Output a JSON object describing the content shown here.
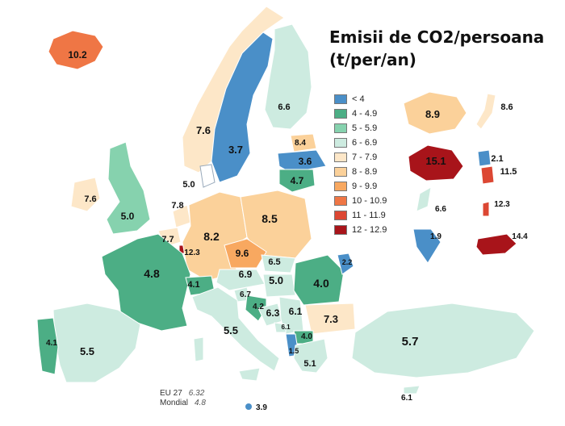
{
  "title": {
    "line1": "Emisii de CO2/persoana",
    "line2": "(t/per/an)"
  },
  "legend": [
    {
      "label": "< 4",
      "color": "#4a8fc8"
    },
    {
      "label": "4 - 4.9",
      "color": "#4cae85"
    },
    {
      "label": "5 - 5.9",
      "color": "#86d2ae"
    },
    {
      "label": "6 - 6.9",
      "color": "#cdebe0"
    },
    {
      "label": "7 - 7.9",
      "color": "#fde7c8"
    },
    {
      "label": "8 - 8.9",
      "color": "#fbd19a"
    },
    {
      "label": "9 - 9.9",
      "color": "#f8a860"
    },
    {
      "label": "10 - 10.9",
      "color": "#ef7645"
    },
    {
      "label": "11 - 11.9",
      "color": "#dc4733"
    },
    {
      "label": "12 - 12.9",
      "color": "#a8141a"
    }
  ],
  "regions": [
    {
      "name": "Iceland",
      "value": "10.2"
    },
    {
      "name": "Norway",
      "value": ""
    },
    {
      "name": "Sweden",
      "value": "3.7"
    },
    {
      "name": "Finland",
      "value": "6.6"
    },
    {
      "name": "Norway-south",
      "value": "7.6"
    },
    {
      "name": "Estonia",
      "value": "8.4"
    },
    {
      "name": "Latvia",
      "value": "3.6"
    },
    {
      "name": "Lithuania",
      "value": "4.7"
    },
    {
      "name": "Denmark",
      "value": "5.0"
    },
    {
      "name": "Ireland",
      "value": "7.6"
    },
    {
      "name": "UK",
      "value": "5.0"
    },
    {
      "name": "Netherlands",
      "value": "7.8"
    },
    {
      "name": "Belgium",
      "value": "7.7"
    },
    {
      "name": "Luxembourg",
      "value": "12.3"
    },
    {
      "name": "Germany",
      "value": "8.2"
    },
    {
      "name": "Poland",
      "value": "8.5"
    },
    {
      "name": "Czechia",
      "value": "9.6"
    },
    {
      "name": "Slovakia",
      "value": "6.5"
    },
    {
      "name": "Austria",
      "value": "6.9"
    },
    {
      "name": "Hungary",
      "value": "5.0"
    },
    {
      "name": "Slovenia",
      "value": "6.7"
    },
    {
      "name": "Croatia",
      "value": "4.2"
    },
    {
      "name": "Bosnia",
      "value": "6.3"
    },
    {
      "name": "Serbia",
      "value": "6.1"
    },
    {
      "name": "Montenegro",
      "value": "6.1"
    },
    {
      "name": "Romania",
      "value": "4.0"
    },
    {
      "name": "Moldova",
      "value": "2.2"
    },
    {
      "name": "Bulgaria",
      "value": "7.3"
    },
    {
      "name": "North-Macedonia",
      "value": "4.0"
    },
    {
      "name": "Albania",
      "value": "1.5"
    },
    {
      "name": "Greece",
      "value": "5.1"
    },
    {
      "name": "France",
      "value": "4.8"
    },
    {
      "name": "Switzerland",
      "value": "4.1"
    },
    {
      "name": "Italy",
      "value": "5.5"
    },
    {
      "name": "Spain",
      "value": "5.5"
    },
    {
      "name": "Portugal",
      "value": "4.1"
    },
    {
      "name": "Turkey",
      "value": "5.7"
    },
    {
      "name": "Cyprus",
      "value": "6.1"
    },
    {
      "name": "Malta",
      "value": "3.9"
    }
  ],
  "world": [
    {
      "name": "China",
      "value": "8.9"
    },
    {
      "name": "Japan",
      "value": "8.6"
    },
    {
      "name": "Australia",
      "value": "15.1"
    },
    {
      "name": "South-Korea",
      "value": "2.1"
    },
    {
      "name": "Korea-2",
      "value": "11.5"
    },
    {
      "name": "New-Zealand",
      "value": "6.6"
    },
    {
      "name": "Taiwan",
      "value": "12.3"
    },
    {
      "name": "India",
      "value": "1.9"
    },
    {
      "name": "USA",
      "value": "14.4"
    }
  ],
  "stats": [
    {
      "label": "EU 27",
      "value": "6.32"
    },
    {
      "label": "Mondial",
      "value": "4.8"
    }
  ]
}
